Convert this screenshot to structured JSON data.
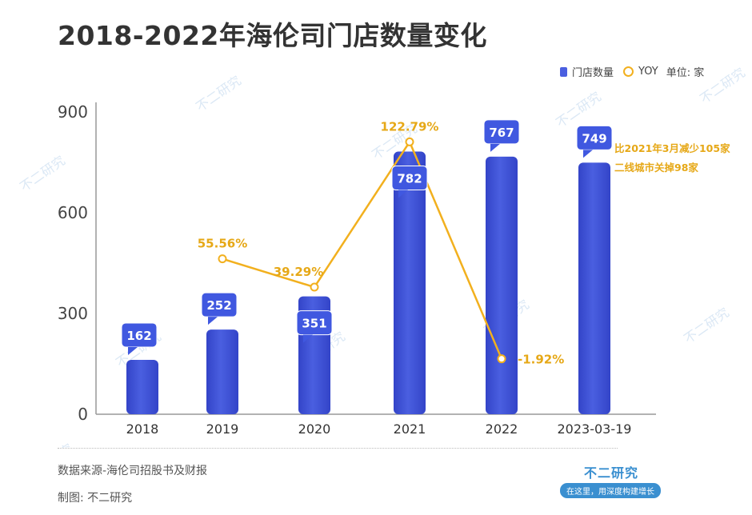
{
  "header": {
    "title": "2018-2022年海伦司门店数量变化"
  },
  "legend": {
    "bar_label": "门店数量",
    "line_label": "YOY",
    "unit_label": "单位: 家"
  },
  "colors": {
    "bar": "#4a5fe0",
    "bar_dark": "#3344c8",
    "callout": "#4058e0",
    "line": "#f2b01e",
    "text_line": "#e6a817"
  },
  "chart_data": {
    "type": "bar",
    "categories": [
      "2018",
      "2019",
      "2020",
      "2021",
      "2022",
      "2023-03-19"
    ],
    "series": [
      {
        "name": "门店数量",
        "type": "bar",
        "values": [
          162,
          252,
          351,
          782,
          767,
          749
        ]
      },
      {
        "name": "YOY",
        "type": "line",
        "values": [
          null,
          55.56,
          39.29,
          122.79,
          -1.92,
          null
        ]
      }
    ],
    "bar_value_labels": [
      "162",
      "252",
      "351",
      "782",
      "767",
      "749"
    ],
    "yoy_labels": [
      "",
      "55.56%",
      "39.29%",
      "122.79%",
      "-1.92%",
      ""
    ],
    "yticks": [
      0,
      300,
      600,
      900
    ],
    "ylim": [
      0,
      900
    ],
    "annotation": [
      "比2021年3月减少105家",
      "二线城市关掉98家"
    ]
  },
  "footer": {
    "source": "数据来源-海伦司招股书及财报",
    "maker": "制图: 不二研究",
    "brand": "不二研究",
    "slogan": "在这里，用深度构建增长"
  },
  "watermark": "不二研究"
}
